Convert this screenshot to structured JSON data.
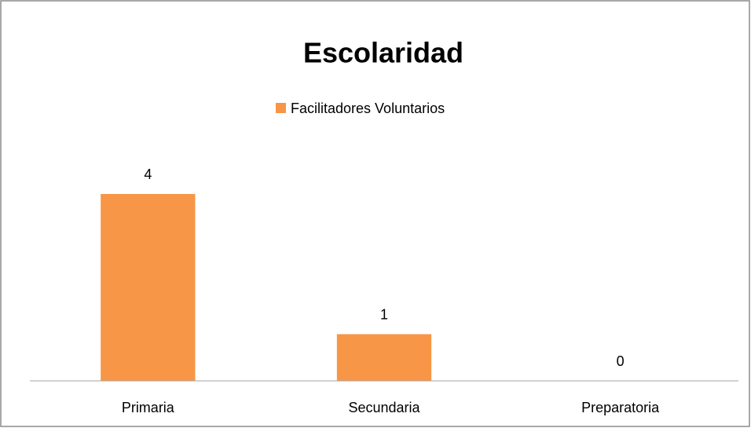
{
  "chart_data": {
    "type": "bar",
    "title": "Escolaridad",
    "categories": [
      "Primaria",
      "Secundaria",
      "Preparatoria"
    ],
    "series": [
      {
        "name": "Facilitadores Voluntarios",
        "color": "#f79646",
        "values": [
          4,
          1,
          0
        ]
      }
    ],
    "ylim": [
      0,
      6
    ],
    "legend": "top"
  }
}
